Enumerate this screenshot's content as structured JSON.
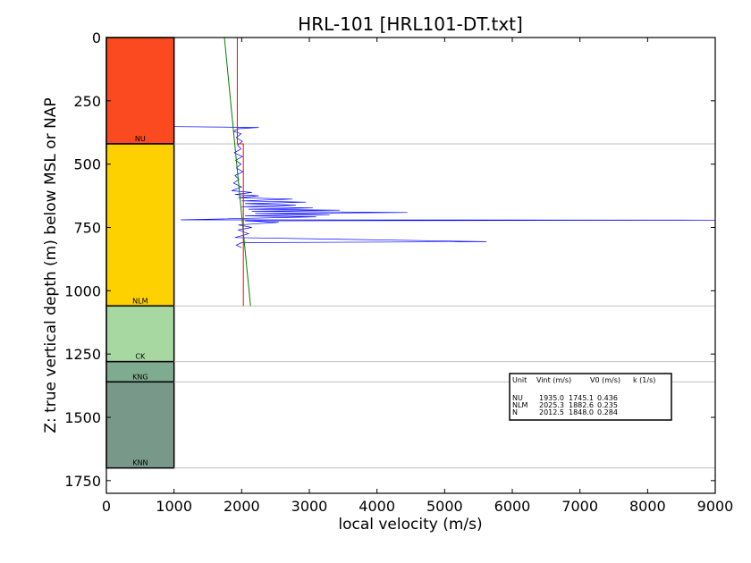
{
  "chart_data": {
    "type": "line",
    "title": "HRL-101 [HRL101-DT.txt]",
    "xlabel": "local velocity (m/s)",
    "ylabel": "Z: true vertical depth (m) below MSL or NAP",
    "xlim": [
      0,
      9000
    ],
    "ylim": [
      1800,
      0
    ],
    "y_inverted": true,
    "xticks": [
      "0",
      "1000",
      "2000",
      "3000",
      "4000",
      "5000",
      "6000",
      "7000",
      "8000",
      "9000"
    ],
    "yticks": [
      "0",
      "250",
      "500",
      "750",
      "1000",
      "1250",
      "1500",
      "1750"
    ],
    "xtick_values": [
      0,
      1000,
      2000,
      3000,
      4000,
      5000,
      6000,
      7000,
      8000,
      9000
    ],
    "ytick_values": [
      0,
      250,
      500,
      750,
      1000,
      1250,
      1500,
      1750
    ],
    "stratigraphy": [
      {
        "unit": "NU",
        "top": 0,
        "base": 420,
        "color": "#fb4a1f"
      },
      {
        "unit": "NLM",
        "top": 420,
        "base": 1060,
        "color": "#fdd000"
      },
      {
        "unit": "CK",
        "top": 1060,
        "base": 1280,
        "color": "#a8d8a2"
      },
      {
        "unit": "KNG",
        "top": 1280,
        "base": 1360,
        "color": "#7fac90"
      },
      {
        "unit": "KNN",
        "top": 1360,
        "base": 1700,
        "color": "#78998a"
      }
    ],
    "strat_column_x": [
      0,
      1000
    ],
    "boundary_lines": [
      420,
      1060,
      1280,
      1360,
      1700
    ],
    "series": [
      {
        "color": "#0000ff",
        "points": [
          [
            1000,
            352
          ],
          [
            2250,
            355
          ],
          [
            1950,
            360
          ],
          [
            1880,
            370
          ],
          [
            1990,
            380
          ],
          [
            1920,
            395
          ],
          [
            2010,
            410
          ],
          [
            1940,
            425
          ],
          [
            1990,
            440
          ],
          [
            1890,
            455
          ],
          [
            2010,
            470
          ],
          [
            1910,
            485
          ],
          [
            1990,
            500
          ],
          [
            1920,
            515
          ],
          [
            2020,
            530
          ],
          [
            1900,
            545
          ],
          [
            1960,
            560
          ],
          [
            1880,
            575
          ],
          [
            2000,
            590
          ],
          [
            1850,
            605
          ],
          [
            2150,
            612
          ],
          [
            1900,
            620
          ],
          [
            2250,
            625
          ],
          [
            1950,
            632
          ],
          [
            2750,
            638
          ],
          [
            2000,
            645
          ],
          [
            2950,
            650
          ],
          [
            2050,
            656
          ],
          [
            2800,
            662
          ],
          [
            2000,
            668
          ],
          [
            3050,
            673
          ],
          [
            2100,
            678
          ],
          [
            3450,
            682
          ],
          [
            2150,
            686
          ],
          [
            4450,
            691
          ],
          [
            2200,
            695
          ],
          [
            3300,
            700
          ],
          [
            2050,
            704
          ],
          [
            3100,
            708
          ],
          [
            1100,
            720
          ],
          [
            9000,
            721
          ],
          [
            2050,
            724
          ],
          [
            2550,
            730
          ],
          [
            1950,
            740
          ],
          [
            2150,
            750
          ],
          [
            1950,
            760
          ],
          [
            2100,
            775
          ],
          [
            1900,
            790
          ],
          [
            5620,
            806
          ],
          [
            2000,
            810
          ],
          [
            1920,
            820
          ],
          [
            2000,
            830
          ]
        ]
      },
      {
        "color": "#008000",
        "points": [
          [
            1745,
            0
          ],
          [
            2130,
            1060
          ]
        ]
      },
      {
        "color": "#ff0000",
        "points": [
          [
            1935,
            0
          ],
          [
            1935,
            420
          ],
          [
            2025,
            420
          ],
          [
            2025,
            1060
          ]
        ]
      }
    ],
    "legend": {
      "header": [
        "Unit",
        "Vint (m/s)",
        "V0 (m/s)",
        "k (1/s)"
      ],
      "rows": [
        [
          "NU",
          "1935.0",
          "1745.1",
          "0.436"
        ],
        [
          "NLM",
          "2025.3",
          "1882.6",
          "0.235"
        ],
        [
          "N",
          "2012.5",
          "1848.0",
          "0.284"
        ]
      ],
      "placement": "lower-right"
    },
    "colors": {
      "vint_line": "#ff0000",
      "trend_line": "#008000",
      "log_curve": "#0000ff",
      "boundary": "#bfbfbf"
    }
  }
}
